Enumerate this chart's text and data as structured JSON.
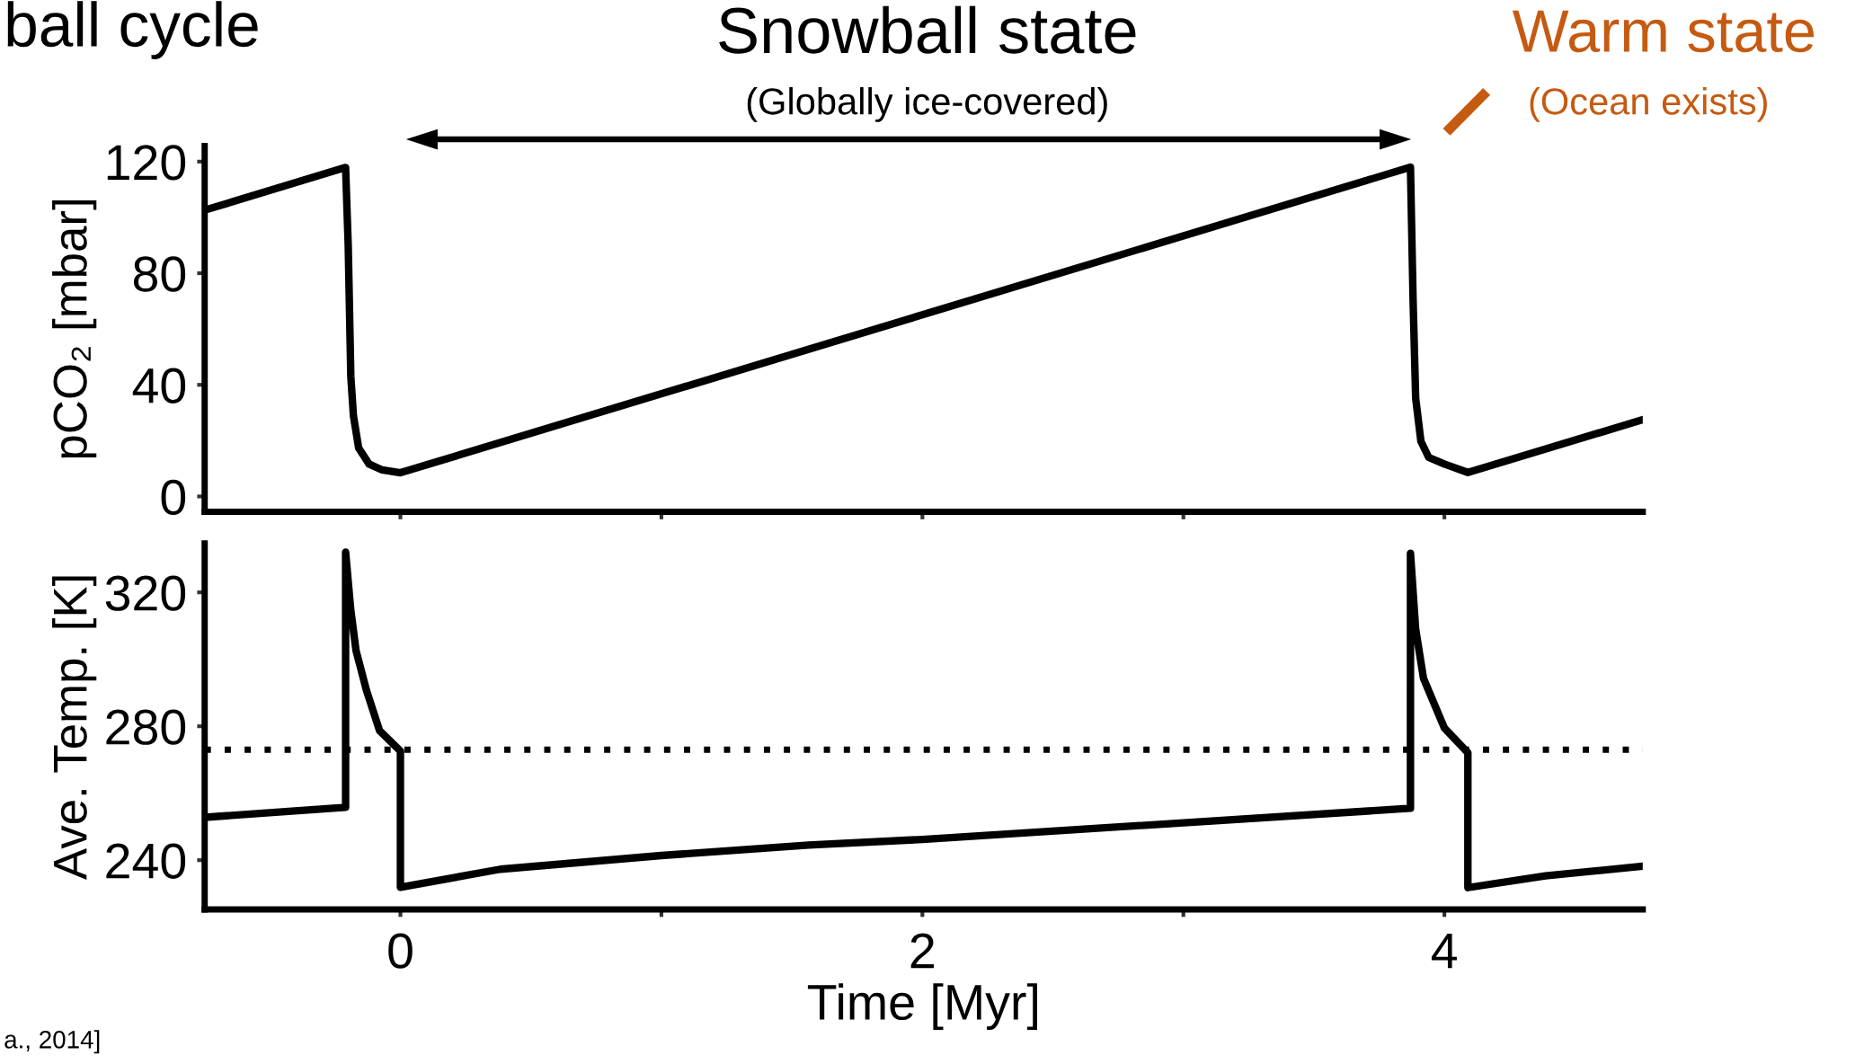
{
  "chart_data": [
    {
      "type": "line",
      "title": "ball cycle",
      "ylabel": "pCO₂ [mbar]",
      "annotations": [
        "Snowball state",
        "(Globally ice-covered)",
        "Warm state",
        "(Ocean exists)"
      ],
      "series": [
        {
          "color": "#000000",
          "x": [
            -0.75,
            -0.21,
            -0.2,
            -0.19,
            -0.18,
            -0.16,
            -0.12,
            -0.07,
            0.0,
            3.87,
            3.88,
            3.89,
            3.91,
            3.94,
            4.0,
            4.09,
            4.76
          ],
          "values": [
            102.6,
            117.9,
            90,
            43,
            28.9,
            17.4,
            11.6,
            9.5,
            8.5,
            118,
            70.6,
            35.2,
            19.8,
            14,
            11.6,
            8.6,
            27.5
          ]
        }
      ],
      "xlim": [
        -0.75,
        4.76
      ],
      "xticks": [
        {
          "value": 0,
          "label": null
        },
        {
          "value": 1,
          "label": null
        },
        {
          "value": 2,
          "label": null
        },
        {
          "value": 3,
          "label": null
        },
        {
          "value": 4,
          "label": null
        }
      ],
      "ylim": [
        -5.5,
        125.6
      ],
      "yticks": [
        0,
        40,
        80,
        120
      ],
      "tick_labels": "y",
      "grid": false,
      "legend": false,
      "line_style": "solid",
      "marker": "none"
    },
    {
      "type": "line",
      "xlabel": "Time [Myr]",
      "ylabel": "Ave. Temp. [K]",
      "annotations": [
        "a., 2014]"
      ],
      "series": [
        {
          "color": "#000000",
          "x": [
            -0.75,
            -0.21,
            -0.21,
            -0.19,
            -0.17,
            -0.13,
            -0.08,
            0.0,
            0.0,
            0.383,
            1.0,
            1.564,
            2.0,
            3.87,
            3.87,
            3.89,
            3.92,
            4.0,
            4.09,
            4.09,
            4.387,
            4.76
          ],
          "values": [
            252.8,
            255.8,
            332,
            314.6,
            302.6,
            290.7,
            278.7,
            272.6,
            231.9,
            237.3,
            241.4,
            244.5,
            246.2,
            255.5,
            331.7,
            309,
            294.3,
            279.5,
            272.1,
            231.8,
            235.3,
            238.2
          ]
        }
      ],
      "ref_lines": [
        {
          "axis": "y",
          "value": 273,
          "color": "#000000",
          "line_style": "dotted"
        }
      ],
      "xlim": [
        -0.75,
        4.76
      ],
      "xticks": [
        0,
        {
          "value": 1,
          "label": null
        },
        2,
        {
          "value": 3,
          "label": null
        },
        4
      ],
      "ylim": [
        225.3,
        334.6
      ],
      "yticks": [
        240,
        280,
        320
      ],
      "grid": false,
      "legend": false,
      "line_style": "solid",
      "marker": "none"
    }
  ]
}
